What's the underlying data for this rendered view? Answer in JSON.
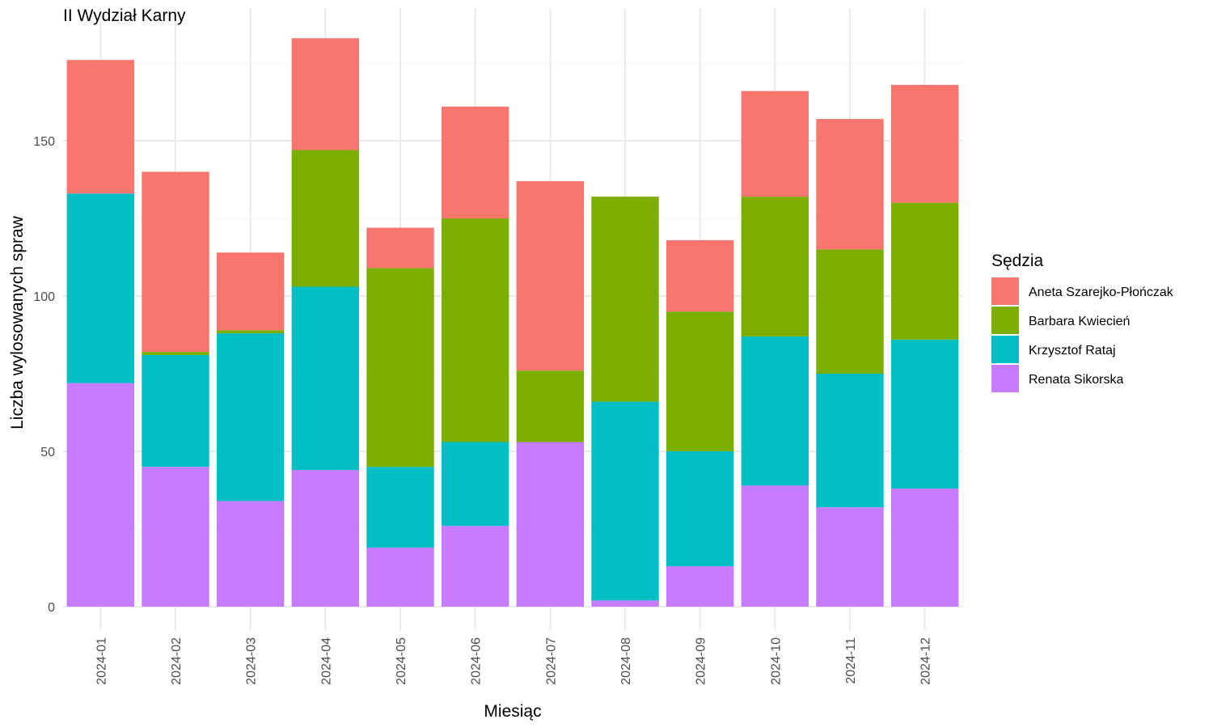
{
  "chart_data": {
    "type": "bar",
    "stacked": true,
    "title": "II Wydział Karny",
    "xlabel": "Miesiąc",
    "ylabel": "Liczba wylosowanych spraw",
    "ylim": [
      0,
      190
    ],
    "yticks": [
      0,
      50,
      100,
      150
    ],
    "grid": true,
    "legend": {
      "title": "Sędzia",
      "position": "right"
    },
    "categories": [
      "2024-01",
      "2024-02",
      "2024-03",
      "2024-04",
      "2024-05",
      "2024-06",
      "2024-07",
      "2024-08",
      "2024-09",
      "2024-10",
      "2024-11",
      "2024-12"
    ],
    "series": [
      {
        "name": "Aneta Szarejko-Płończak",
        "color": "#F8766D",
        "values": [
          43,
          58,
          25,
          36,
          13,
          36,
          61,
          0,
          23,
          34,
          42,
          38
        ]
      },
      {
        "name": "Barbara Kwiecień",
        "color": "#7CAE00",
        "values": [
          0,
          1,
          1,
          44,
          64,
          72,
          23,
          66,
          45,
          45,
          40,
          44
        ]
      },
      {
        "name": "Krzysztof Rataj",
        "color": "#00BFC4",
        "values": [
          61,
          36,
          54,
          59,
          26,
          27,
          0,
          64,
          37,
          48,
          43,
          48
        ]
      },
      {
        "name": "Renata Sikorska",
        "color": "#C77CFF",
        "values": [
          72,
          45,
          34,
          44,
          19,
          26,
          53,
          2,
          13,
          39,
          32,
          38
        ]
      }
    ]
  }
}
